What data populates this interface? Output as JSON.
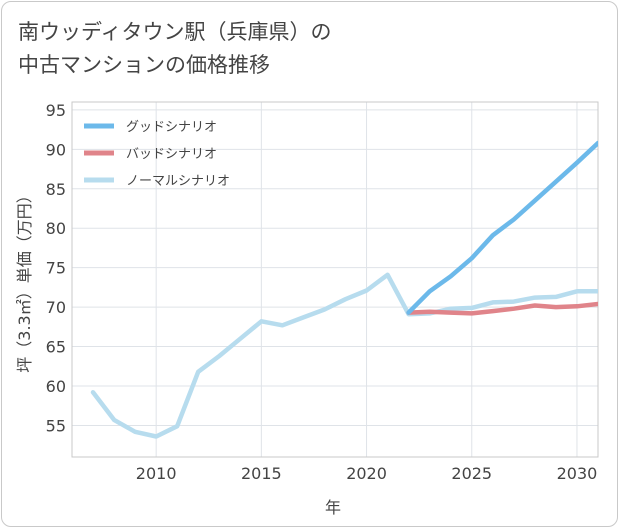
{
  "title_line1": "南ウッディタウン駅（兵庫県）の",
  "title_line2": "中古マンションの価格推移",
  "chart_data": {
    "type": "line",
    "title": "南ウッディタウン駅（兵庫県）の中古マンションの価格推移",
    "xlabel": "年",
    "ylabel": "坪（3.3㎡）単価（万円）",
    "xlim": [
      2006,
      2031
    ],
    "ylim": [
      51,
      96
    ],
    "xticks": [
      2010,
      2015,
      2020,
      2025,
      2030
    ],
    "yticks": [
      55,
      60,
      65,
      70,
      75,
      80,
      85,
      90,
      95
    ],
    "grid": true,
    "legend_position": "top-left",
    "series": [
      {
        "name": "グッドシナリオ",
        "color": "#6cb9ea",
        "x": [
          2022,
          2023,
          2024,
          2025,
          2026,
          2027,
          2028,
          2029,
          2030,
          2031
        ],
        "y": [
          69.3,
          72.0,
          73.9,
          76.2,
          79.1,
          81.1,
          83.5,
          85.9,
          88.3,
          90.8
        ]
      },
      {
        "name": "バッドシナリオ",
        "color": "#e0848a",
        "x": [
          2022,
          2023,
          2024,
          2025,
          2026,
          2027,
          2028,
          2029,
          2030,
          2031
        ],
        "y": [
          69.3,
          69.4,
          69.3,
          69.2,
          69.5,
          69.8,
          70.2,
          70.0,
          70.1,
          70.4
        ]
      },
      {
        "name": "ノーマルシナリオ",
        "color": "#b7dcee",
        "x": [
          2007,
          2008,
          2009,
          2010,
          2011,
          2012,
          2013,
          2014,
          2015,
          2016,
          2017,
          2018,
          2019,
          2020,
          2021,
          2022,
          2023,
          2024,
          2025,
          2026,
          2027,
          2028,
          2029,
          2030,
          2031
        ],
        "y": [
          59.2,
          55.7,
          54.2,
          53.6,
          54.9,
          61.8,
          63.8,
          66.0,
          68.2,
          67.7,
          68.7,
          69.7,
          71.0,
          72.1,
          74.1,
          69.1,
          69.2,
          69.8,
          69.9,
          70.6,
          70.7,
          71.2,
          71.3,
          72.0,
          72.0
        ]
      }
    ]
  }
}
